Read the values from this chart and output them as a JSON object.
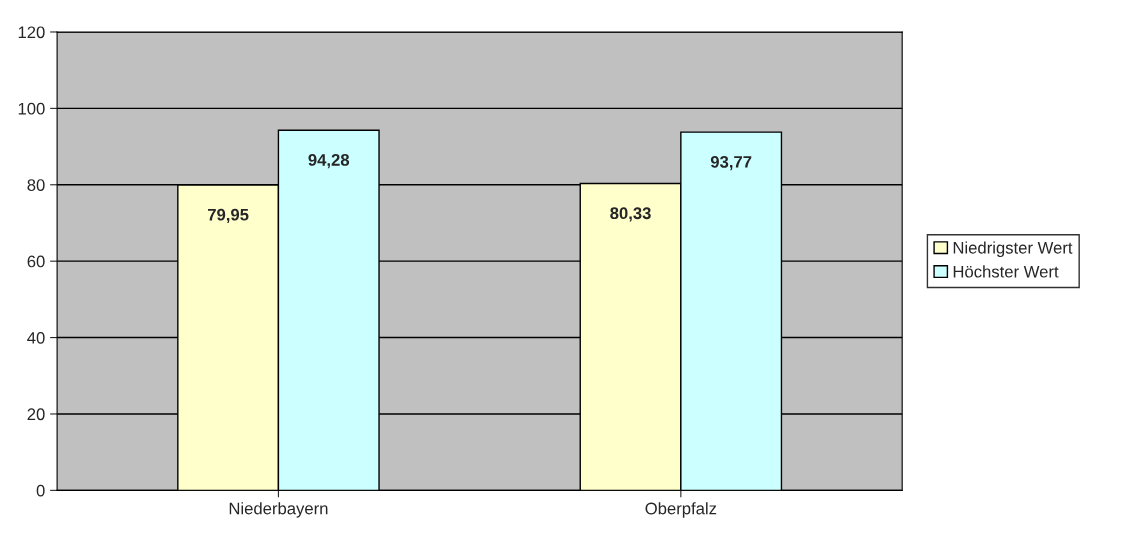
{
  "chart_data": {
    "type": "bar",
    "categories": [
      "Niederbayern",
      "Oberpfalz"
    ],
    "series": [
      {
        "name": "Niedrigster Wert",
        "color": "#ffffcc",
        "values": [
          79.95,
          80.33
        ],
        "value_labels": [
          "79,95",
          "80,33"
        ]
      },
      {
        "name": "Höchster Wert",
        "color": "#ccffff",
        "values": [
          94.28,
          93.77
        ],
        "value_labels": [
          "94,28",
          "93,77"
        ]
      }
    ],
    "ylim": [
      0,
      120
    ],
    "yticks": [
      0,
      20,
      40,
      60,
      80,
      100,
      120
    ],
    "grid": "y",
    "legend": "right"
  }
}
